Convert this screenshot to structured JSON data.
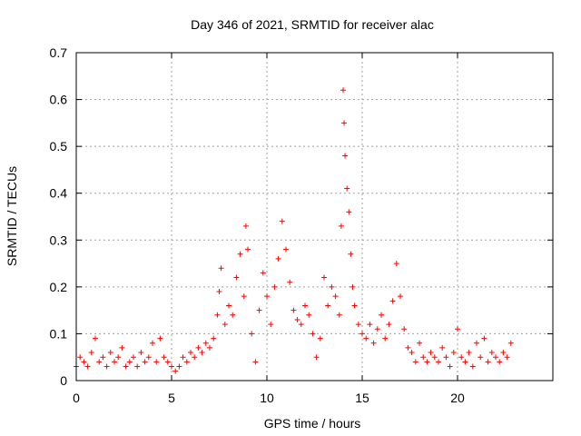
{
  "chart_data": {
    "type": "scatter",
    "title": "Day 346 of 2021, SRMTID for receiver alac",
    "xlabel": "GPS time / hours",
    "ylabel": "SRMTID / TECUs",
    "xlim": [
      0,
      25
    ],
    "ylim": [
      0,
      0.7
    ],
    "xticks": [
      0,
      5,
      10,
      15,
      20
    ],
    "xtick_labels": [
      "0",
      "5",
      "10",
      "15",
      "20"
    ],
    "yticks": [
      0,
      0.1,
      0.2,
      0.3,
      0.4,
      0.5,
      0.6,
      0.7
    ],
    "ytick_labels": [
      "0",
      "0.1",
      "0.2",
      "0.3",
      "0.4",
      "0.5",
      "0.6",
      "0.7"
    ],
    "grid": true,
    "marker": "+",
    "color": "#ff0000",
    "series": [
      {
        "name": "SRMTID",
        "points": [
          [
            0.0,
            0.03
          ],
          [
            0.2,
            0.05
          ],
          [
            0.4,
            0.04
          ],
          [
            0.6,
            0.03
          ],
          [
            0.8,
            0.06
          ],
          [
            1.0,
            0.09
          ],
          [
            1.2,
            0.04
          ],
          [
            1.4,
            0.05
          ],
          [
            1.6,
            0.03
          ],
          [
            1.8,
            0.06
          ],
          [
            2.0,
            0.04
          ],
          [
            2.2,
            0.05
          ],
          [
            2.4,
            0.07
          ],
          [
            2.6,
            0.03
          ],
          [
            2.8,
            0.04
          ],
          [
            3.0,
            0.05
          ],
          [
            3.2,
            0.03
          ],
          [
            3.4,
            0.06
          ],
          [
            3.6,
            0.04
          ],
          [
            3.8,
            0.05
          ],
          [
            4.0,
            0.08
          ],
          [
            4.2,
            0.04
          ],
          [
            4.4,
            0.09
          ],
          [
            4.6,
            0.05
          ],
          [
            4.8,
            0.04
          ],
          [
            5.0,
            0.03
          ],
          [
            5.2,
            0.02
          ],
          [
            5.4,
            0.03
          ],
          [
            5.6,
            0.05
          ],
          [
            5.8,
            0.04
          ],
          [
            6.0,
            0.06
          ],
          [
            6.2,
            0.05
          ],
          [
            6.4,
            0.07
          ],
          [
            6.6,
            0.06
          ],
          [
            6.8,
            0.08
          ],
          [
            7.0,
            0.07
          ],
          [
            7.2,
            0.09
          ],
          [
            7.4,
            0.14
          ],
          [
            7.5,
            0.19
          ],
          [
            7.6,
            0.24
          ],
          [
            7.8,
            0.12
          ],
          [
            8.0,
            0.16
          ],
          [
            8.2,
            0.14
          ],
          [
            8.4,
            0.22
          ],
          [
            8.6,
            0.27
          ],
          [
            8.8,
            0.18
          ],
          [
            8.9,
            0.33
          ],
          [
            9.0,
            0.28
          ],
          [
            9.2,
            0.1
          ],
          [
            9.4,
            0.04
          ],
          [
            9.6,
            0.15
          ],
          [
            9.8,
            0.23
          ],
          [
            10.0,
            0.18
          ],
          [
            10.2,
            0.12
          ],
          [
            10.4,
            0.2
          ],
          [
            10.6,
            0.26
          ],
          [
            10.8,
            0.34
          ],
          [
            11.0,
            0.28
          ],
          [
            11.2,
            0.21
          ],
          [
            11.4,
            0.15
          ],
          [
            11.6,
            0.13
          ],
          [
            11.8,
            0.12
          ],
          [
            12.0,
            0.16
          ],
          [
            12.2,
            0.14
          ],
          [
            12.4,
            0.1
          ],
          [
            12.6,
            0.05
          ],
          [
            12.8,
            0.09
          ],
          [
            13.0,
            0.22
          ],
          [
            13.2,
            0.16
          ],
          [
            13.4,
            0.2
          ],
          [
            13.6,
            0.18
          ],
          [
            13.8,
            0.14
          ],
          [
            13.9,
            0.33
          ],
          [
            14.0,
            0.62
          ],
          [
            14.05,
            0.55
          ],
          [
            14.1,
            0.48
          ],
          [
            14.2,
            0.41
          ],
          [
            14.3,
            0.36
          ],
          [
            14.4,
            0.27
          ],
          [
            14.5,
            0.2
          ],
          [
            14.6,
            0.16
          ],
          [
            14.8,
            0.12
          ],
          [
            15.0,
            0.1
          ],
          [
            15.2,
            0.09
          ],
          [
            15.4,
            0.12
          ],
          [
            15.6,
            0.08
          ],
          [
            15.8,
            0.11
          ],
          [
            16.0,
            0.14
          ],
          [
            16.2,
            0.09
          ],
          [
            16.4,
            0.12
          ],
          [
            16.6,
            0.17
          ],
          [
            16.8,
            0.25
          ],
          [
            17.0,
            0.18
          ],
          [
            17.2,
            0.11
          ],
          [
            17.4,
            0.07
          ],
          [
            17.6,
            0.06
          ],
          [
            17.8,
            0.04
          ],
          [
            18.0,
            0.08
          ],
          [
            18.2,
            0.05
          ],
          [
            18.4,
            0.04
          ],
          [
            18.6,
            0.06
          ],
          [
            18.8,
            0.05
          ],
          [
            19.0,
            0.04
          ],
          [
            19.2,
            0.07
          ],
          [
            19.4,
            0.05
          ],
          [
            19.6,
            0.03
          ],
          [
            19.8,
            0.06
          ],
          [
            20.0,
            0.11
          ],
          [
            20.2,
            0.05
          ],
          [
            20.4,
            0.04
          ],
          [
            20.6,
            0.06
          ],
          [
            20.8,
            0.03
          ],
          [
            21.0,
            0.08
          ],
          [
            21.2,
            0.05
          ],
          [
            21.4,
            0.09
          ],
          [
            21.6,
            0.04
          ],
          [
            21.8,
            0.06
          ],
          [
            22.0,
            0.05
          ],
          [
            22.2,
            0.04
          ],
          [
            22.4,
            0.06
          ],
          [
            22.6,
            0.05
          ],
          [
            22.8,
            0.08
          ]
        ]
      }
    ]
  }
}
